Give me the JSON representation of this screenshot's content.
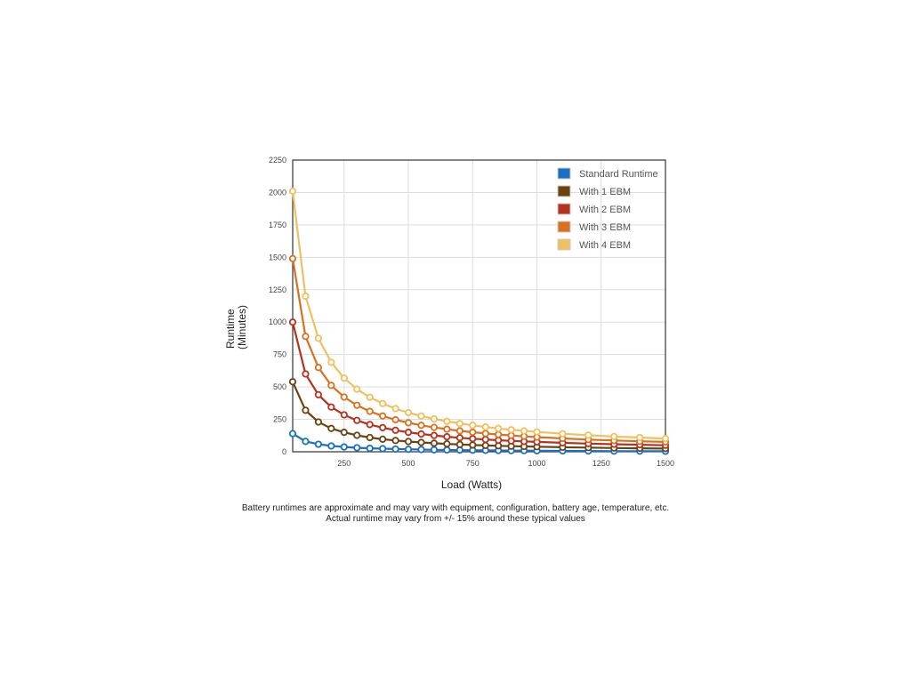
{
  "chart_data": {
    "type": "line",
    "xlabel": "Load (Watts)",
    "ylabel": [
      "Runtime",
      "(Minutes)"
    ],
    "xlim": [
      50,
      1500
    ],
    "ylim": [
      0,
      2250
    ],
    "x_ticks": [
      250,
      500,
      750,
      1000,
      1250,
      1500
    ],
    "y_ticks": [
      0,
      250,
      500,
      750,
      1000,
      1250,
      1500,
      1750,
      2000,
      2250
    ],
    "grid": true,
    "legend_position": "top-right",
    "x": [
      50,
      100,
      150,
      200,
      250,
      300,
      350,
      400,
      450,
      500,
      550,
      600,
      650,
      700,
      750,
      800,
      850,
      900,
      950,
      1000,
      1100,
      1200,
      1300,
      1400,
      1500
    ],
    "series": [
      {
        "name": "Standard Runtime",
        "color": "#1a6fc4",
        "values": [
          140,
          80,
          58,
          45,
          37,
          31,
          27,
          24,
          21,
          19,
          17,
          15,
          14,
          13,
          12,
          11,
          10,
          9,
          9,
          8,
          7,
          6,
          5,
          5,
          4
        ]
      },
      {
        "name": "With 1 EBM",
        "color": "#6b4310",
        "values": [
          540,
          320,
          230,
          180,
          150,
          127,
          110,
          97,
          87,
          79,
          72,
          66,
          61,
          56,
          52,
          49,
          46,
          43,
          41,
          39,
          35,
          32,
          29,
          27,
          25
        ]
      },
      {
        "name": "With 2 EBM",
        "color": "#b5321f",
        "values": [
          1000,
          600,
          440,
          345,
          285,
          242,
          210,
          186,
          166,
          150,
          137,
          126,
          116,
          108,
          101,
          95,
          89,
          84,
          80,
          76,
          69,
          63,
          58,
          54,
          50
        ]
      },
      {
        "name": "With 3 EBM",
        "color": "#d9711f",
        "values": [
          1490,
          890,
          650,
          512,
          422,
          359,
          312,
          276,
          247,
          224,
          204,
          188,
          174,
          161,
          151,
          141,
          133,
          126,
          119,
          113,
          103,
          94,
          87,
          81,
          76
        ]
      },
      {
        "name": "With 4 EBM",
        "color": "#f0c060",
        "values": [
          2010,
          1200,
          875,
          690,
          568,
          483,
          420,
          372,
          333,
          302,
          276,
          254,
          235,
          218,
          204,
          191,
          180,
          170,
          161,
          153,
          139,
          128,
          118,
          110,
          102
        ]
      }
    ]
  },
  "footnote": {
    "line1": "Battery runtimes are approximate and may vary with equipment, configuration, battery age, temperature, etc.",
    "line2": "Actual runtime may vary from +/- 15% around these typical values"
  }
}
